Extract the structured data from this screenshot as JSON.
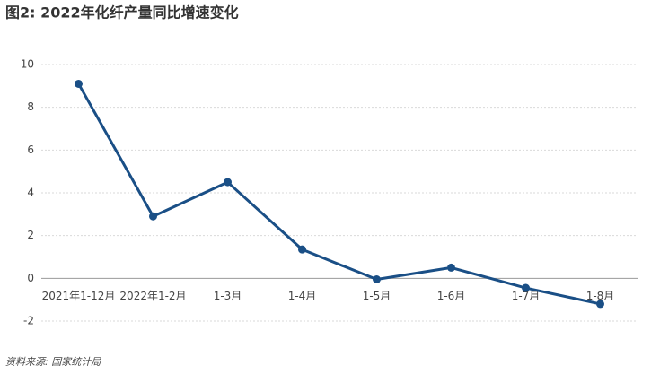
{
  "chart_data": {
    "type": "line",
    "title": "图2: 2022年化纤产量同比增速变化",
    "source": "资料来源: 国家统计局",
    "categories": [
      "2021年1-12月",
      "2022年1-2月",
      "1-3月",
      "1-4月",
      "1-5月",
      "1-6月",
      "1-7月",
      "1-8月"
    ],
    "series": [
      {
        "name": "化纤产量同比增速",
        "color": "#1a4f86",
        "values": [
          9.1,
          2.9,
          4.5,
          1.35,
          -0.05,
          0.5,
          -0.45,
          -1.2
        ]
      }
    ],
    "ylim": [
      -2,
      10
    ],
    "yticks": [
      -2,
      0,
      2,
      4,
      6,
      8,
      10
    ],
    "grid": true
  }
}
